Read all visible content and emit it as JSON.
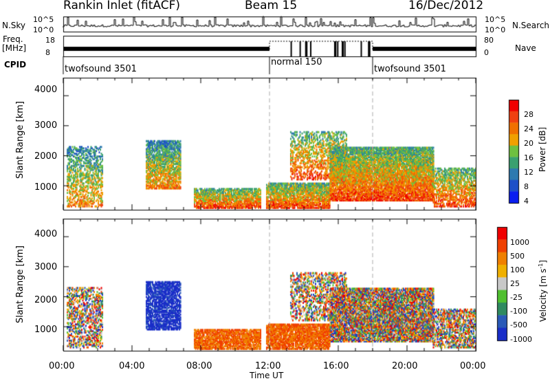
{
  "header": {
    "station": "Rankin Inlet (fitACF)",
    "beam": "Beam 15",
    "date": "16/Dec/2012"
  },
  "top_panel": {
    "nsky_label": "N.Sky",
    "nsky_ticks": [
      "10^5",
      "10^0"
    ],
    "nsearch_label": "N.Search",
    "nsearch_ticks": [
      "10^5",
      "10^0"
    ],
    "freq_label": "Freq.",
    "freq_unit": "[MHz]",
    "freq_ticks": [
      "18",
      "8"
    ],
    "nave_label": "Nave",
    "nave_ticks": [
      "80",
      "0"
    ],
    "cpid_label": "CPID",
    "cpid_segments": [
      {
        "name": "twofsound 3501",
        "start_hr": 0,
        "end_hr": 12
      },
      {
        "name": "normal 150",
        "start_hr": 12,
        "end_hr": 18
      },
      {
        "name": "twofsound 3501",
        "start_hr": 18,
        "end_hr": 24
      }
    ]
  },
  "chart_data": [
    {
      "type": "heatmap",
      "name": "power",
      "ylabel": "Slant Range [km]",
      "yticks": [
        1000,
        2000,
        3000,
        4000
      ],
      "ylim": [
        200,
        4600
      ],
      "colorbar_label": "Power [dB]",
      "colorbar_ticks": [
        "28",
        "24",
        "20",
        "16",
        "12",
        "8",
        "4"
      ],
      "colors": [
        "#0a1ef0",
        "#1e50c8",
        "#2e7ab0",
        "#3aa070",
        "#6ec040",
        "#f0a000",
        "#f07000",
        "#f04010",
        "#f00000"
      ]
    },
    {
      "type": "heatmap",
      "name": "velocity",
      "ylabel": "Slant Range [km]",
      "yticks": [
        1000,
        2000,
        3000,
        4000
      ],
      "ylim": [
        200,
        4600
      ],
      "colorbar_label": "Velocity [m s",
      "colorbar_label_sup": "-1",
      "colorbar_label_end": "]",
      "colorbar_ticks": [
        "1000",
        "500",
        "100",
        "25",
        "-25",
        "-100",
        "-500",
        "-1000"
      ],
      "colors": [
        "#1a2ec8",
        "#2a5ab8",
        "#2f8a60",
        "#50c030",
        "#c8c8c8",
        "#f0b000",
        "#f08000",
        "#f04000",
        "#f00000"
      ],
      "xlabel": "Time UT",
      "xticks": [
        "00:00",
        "04:00",
        "08:00",
        "12:00",
        "16:00",
        "20:00",
        "00:00"
      ],
      "xlim": [
        0,
        24
      ]
    }
  ]
}
